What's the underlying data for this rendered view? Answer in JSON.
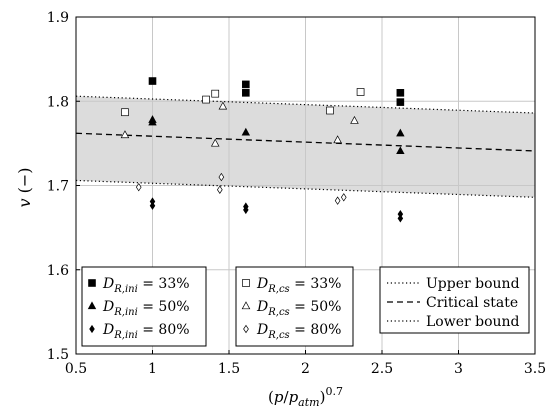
{
  "chart_data": {
    "type": "scatter",
    "xlabel": "(p/p_atm)^0.7",
    "ylabel": "v (−)",
    "xlim": [
      0.5,
      3.5
    ],
    "ylim": [
      1.5,
      1.9
    ],
    "xticks": [
      "0.5",
      "1",
      "1.5",
      "2",
      "2.5",
      "3",
      "3.5"
    ],
    "yticks": [
      "1.5",
      "1.6",
      "1.7",
      "1.8",
      "1.9"
    ],
    "grid": true,
    "band": {
      "upper": [
        [
          0.5,
          1.806
        ],
        [
          3.5,
          1.786
        ]
      ],
      "lower": [
        [
          0.5,
          1.706
        ],
        [
          3.5,
          1.686
        ]
      ]
    },
    "lines": [
      {
        "name": "Upper bound",
        "style": "dotted",
        "points": [
          [
            0.5,
            1.806
          ],
          [
            3.5,
            1.786
          ]
        ]
      },
      {
        "name": "Critical state",
        "style": "dashed",
        "points": [
          [
            0.5,
            1.762
          ],
          [
            3.5,
            1.741
          ]
        ]
      },
      {
        "name": "Lower bound",
        "style": "dotted",
        "points": [
          [
            0.5,
            1.706
          ],
          [
            3.5,
            1.686
          ]
        ]
      }
    ],
    "series": [
      {
        "name": "D_R,ini = 33%",
        "marker": "square",
        "filled": true,
        "points": [
          [
            1.0,
            1.824
          ],
          [
            1.61,
            1.82
          ],
          [
            1.61,
            1.81
          ],
          [
            2.62,
            1.81
          ],
          [
            2.62,
            1.799
          ]
        ]
      },
      {
        "name": "D_R,ini = 50%",
        "marker": "triangle",
        "filled": true,
        "points": [
          [
            1.0,
            1.778
          ],
          [
            1.0,
            1.775
          ],
          [
            1.61,
            1.763
          ],
          [
            2.62,
            1.762
          ],
          [
            2.62,
            1.741
          ]
        ]
      },
      {
        "name": "D_R,ini = 80%",
        "marker": "diamond",
        "filled": true,
        "points": [
          [
            1.0,
            1.681
          ],
          [
            1.0,
            1.676
          ],
          [
            1.61,
            1.675
          ],
          [
            1.61,
            1.671
          ],
          [
            2.62,
            1.666
          ],
          [
            2.62,
            1.661
          ]
        ]
      },
      {
        "name": "D_R,cs = 33%",
        "marker": "square",
        "filled": false,
        "points": [
          [
            0.82,
            1.787
          ],
          [
            1.35,
            1.802
          ],
          [
            1.41,
            1.809
          ],
          [
            2.16,
            1.789
          ],
          [
            2.36,
            1.811
          ]
        ]
      },
      {
        "name": "D_R,cs = 50%",
        "marker": "triangle",
        "filled": false,
        "points": [
          [
            0.82,
            1.76
          ],
          [
            1.41,
            1.75
          ],
          [
            1.46,
            1.794
          ],
          [
            2.21,
            1.754
          ],
          [
            2.32,
            1.777
          ]
        ]
      },
      {
        "name": "D_R,cs = 80%",
        "marker": "diamond",
        "filled": false,
        "points": [
          [
            0.91,
            1.698
          ],
          [
            1.45,
            1.71
          ],
          [
            1.44,
            1.695
          ],
          [
            2.21,
            1.682
          ],
          [
            2.25,
            1.686
          ]
        ]
      }
    ],
    "legends": [
      {
        "placement": "bottom-left",
        "entries": [
          {
            "marker": "square",
            "filled": true,
            "sub": "R,ini",
            "value": "33%"
          },
          {
            "marker": "triangle",
            "filled": true,
            "sub": "R,ini",
            "value": "50%"
          },
          {
            "marker": "diamond",
            "filled": true,
            "sub": "R,ini",
            "value": "80%"
          }
        ]
      },
      {
        "placement": "bottom-center",
        "entries": [
          {
            "marker": "square",
            "filled": false,
            "sub": "R,cs",
            "value": "33%"
          },
          {
            "marker": "triangle",
            "filled": false,
            "sub": "R,cs",
            "value": "50%"
          },
          {
            "marker": "diamond",
            "filled": false,
            "sub": "R,cs",
            "value": "80%"
          }
        ]
      },
      {
        "placement": "bottom-right",
        "entries": [
          {
            "line": "dotted",
            "label": "Upper bound"
          },
          {
            "line": "dashed",
            "label": "Critical state"
          },
          {
            "line": "dotted",
            "label": "Lower bound"
          }
        ]
      }
    ],
    "colors": {
      "band_fill": "#dcdcdc",
      "grid": "#c8c8c8",
      "ink": "#000000"
    }
  }
}
